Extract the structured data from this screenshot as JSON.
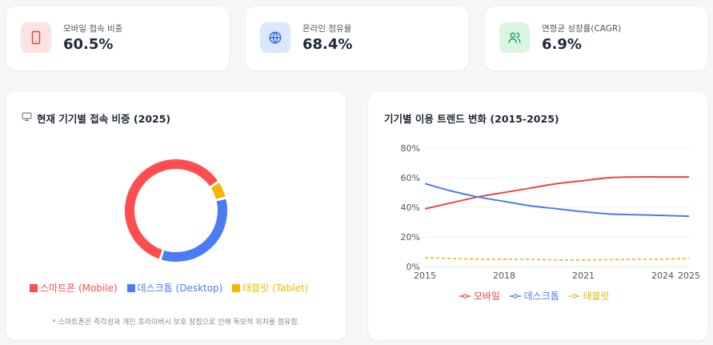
{
  "kpis": [
    {
      "label": "모바일 접속 비중",
      "value": "60.5%",
      "icon": "tablet-icon",
      "bg": "#fde2e2",
      "fg": "#ef4444"
    },
    {
      "label": "온라인 점유율",
      "value": "68.4%",
      "icon": "globe-icon",
      "bg": "#dbe7fd",
      "fg": "#3b6fe0"
    },
    {
      "label": "연평균 성장률(CAGR)",
      "value": "6.9%",
      "icon": "users-icon",
      "bg": "#dcf5e3",
      "fg": "#22a05a"
    }
  ],
  "donut_panel": {
    "title": "현재 기기별 접속 비중 (2025)",
    "icon": "monitor-icon",
    "legend": [
      {
        "label": "스마트폰 (Mobile)",
        "color": "#ff4d4f"
      },
      {
        "label": "데스크톱 (Desktop)",
        "color": "#4a7cf6"
      },
      {
        "label": "태블릿 (Tablet)",
        "color": "#f5b700"
      }
    ],
    "note": "* 스마트폰은 즉각성과 개인 프라이버시 보호 장점으로 인해 독보적 위치를 점유함."
  },
  "trend_panel": {
    "title": "기기별 이용 트렌드 변화 (2015-2025)",
    "legend": [
      {
        "label": "모바일",
        "color": "#ef4444"
      },
      {
        "label": "데스크톱",
        "color": "#4a7cf6"
      },
      {
        "label": "태블릿",
        "color": "#eab308"
      }
    ]
  },
  "chart_data": [
    {
      "type": "pie",
      "title": "현재 기기별 접속 비중 (2025)",
      "categories": [
        "스마트폰 (Mobile)",
        "데스크톱 (Desktop)",
        "태블릿 (Tablet)"
      ],
      "values": [
        60.5,
        34,
        5.5
      ],
      "colors": [
        "#ff4d4f",
        "#4a7cf6",
        "#f5b700"
      ],
      "legend": "bottom"
    },
    {
      "type": "line",
      "title": "기기별 이용 트렌드 변화 (2015-2025)",
      "x": [
        2015,
        2016,
        2017,
        2018,
        2019,
        2020,
        2021,
        2022,
        2023,
        2024,
        2025
      ],
      "x_ticks": [
        "2015",
        "2018",
        "2021",
        "2024",
        "2025"
      ],
      "y_ticks": [
        "0%",
        "20%",
        "40%",
        "60%",
        "80%"
      ],
      "ylim": [
        0,
        80
      ],
      "series": [
        {
          "name": "모바일",
          "color": "#ef4444",
          "values": [
            39,
            43,
            47,
            50,
            53,
            56,
            58,
            60,
            60.5,
            60.5,
            60.5
          ],
          "dashed": false
        },
        {
          "name": "데스크톱",
          "color": "#4a7cf6",
          "values": [
            56,
            51,
            47,
            44,
            41,
            39,
            37,
            35.5,
            35,
            34.5,
            34
          ],
          "dashed": false
        },
        {
          "name": "태블릿",
          "color": "#eab308",
          "values": [
            6,
            5.5,
            5,
            5,
            4.8,
            4.5,
            4.5,
            4.6,
            4.8,
            5,
            5.5
          ],
          "dashed": true
        }
      ],
      "grid": true,
      "legend": "bottom"
    }
  ]
}
